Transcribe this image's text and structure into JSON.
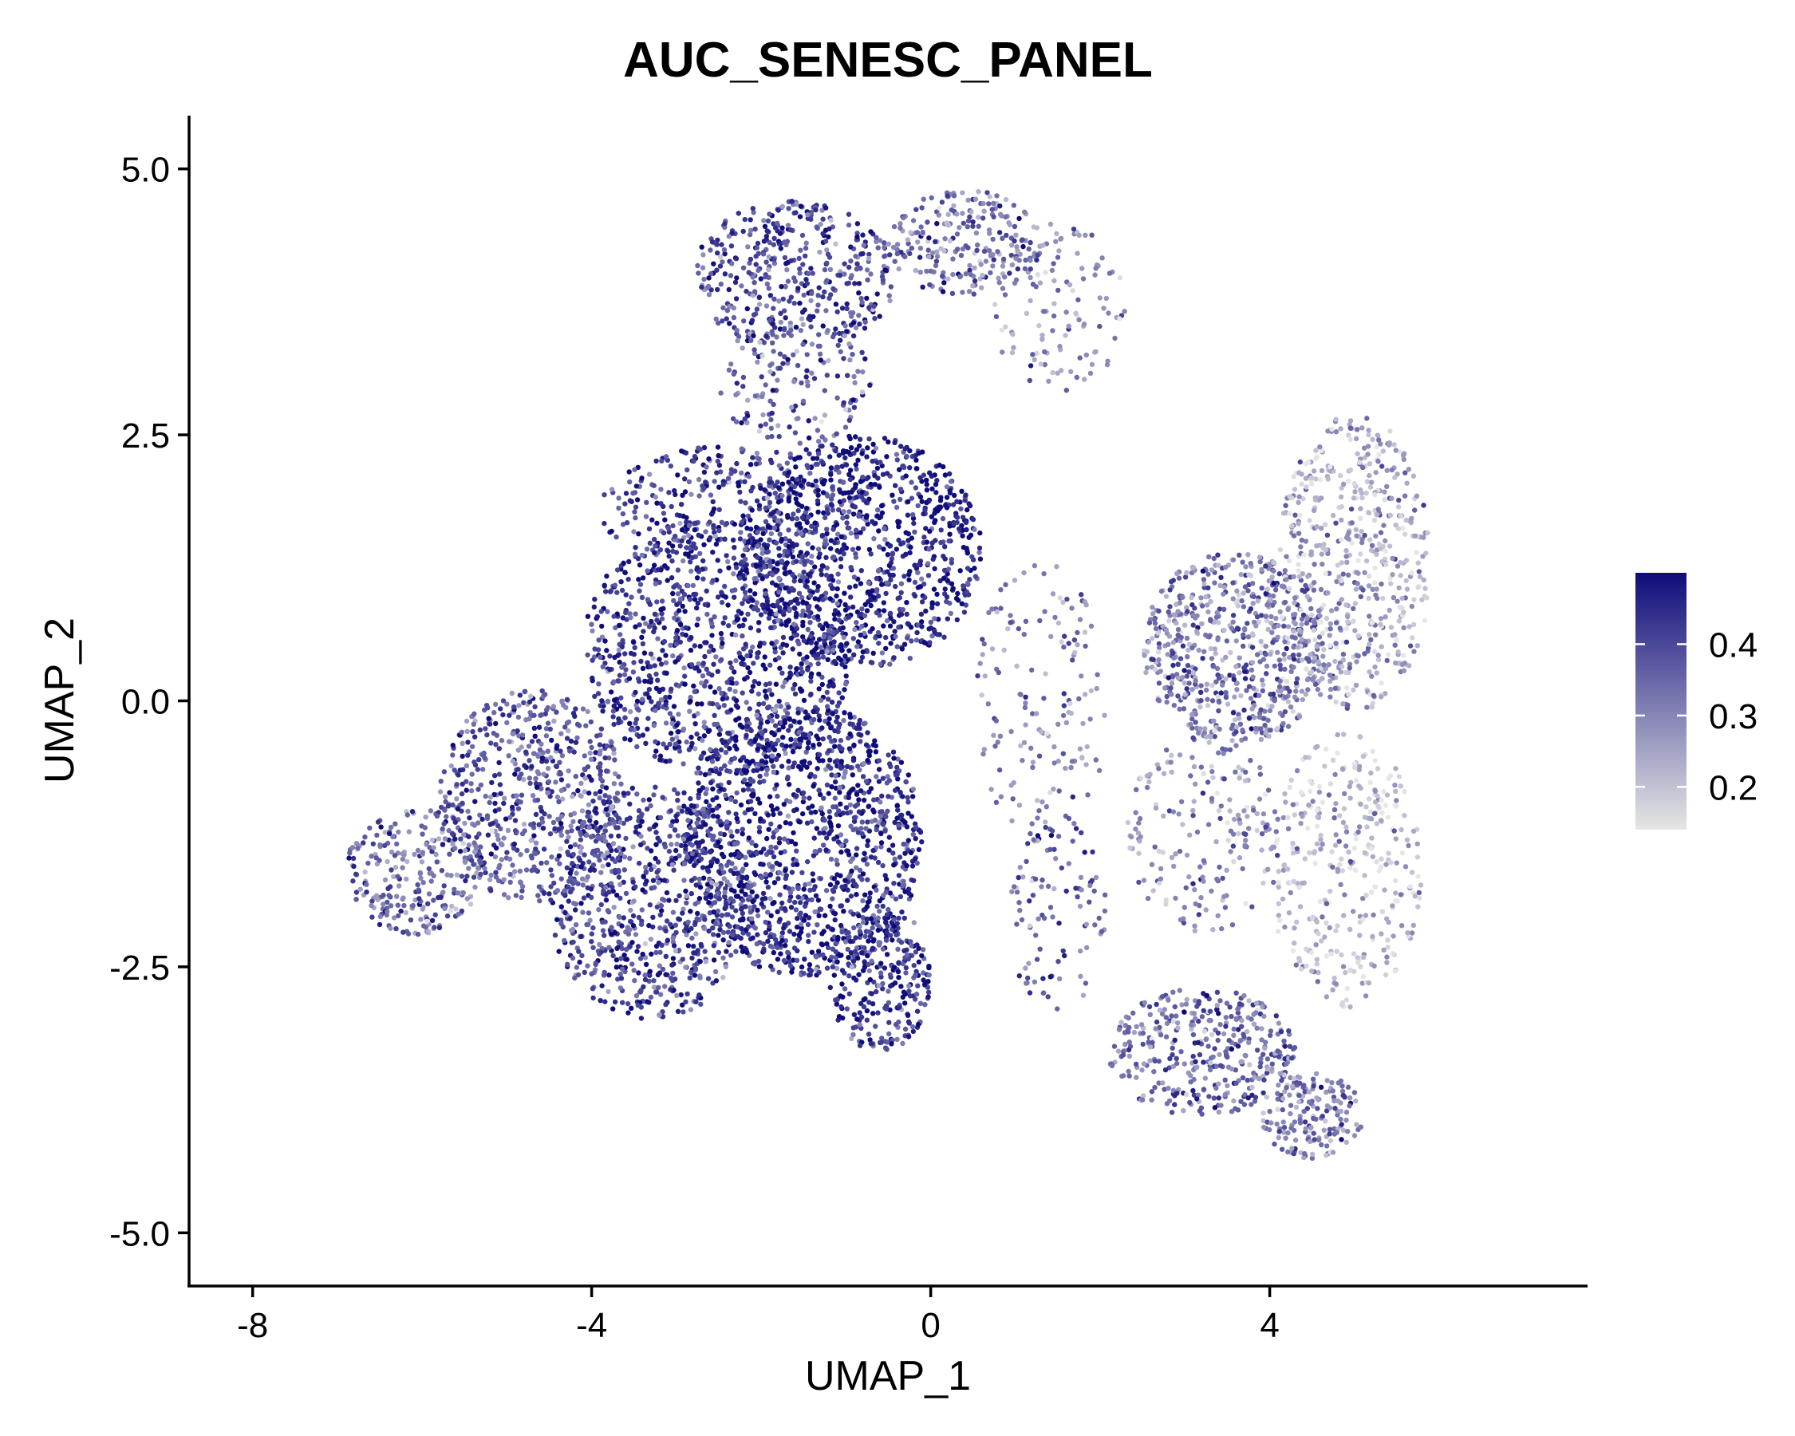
{
  "chart_data": {
    "type": "scatter",
    "title": "AUC_SENESC_PANEL",
    "xlabel": "UMAP_1",
    "ylabel": "UMAP_2",
    "xlim": [
      -8.75,
      7.75
    ],
    "ylim": [
      -5.5,
      5.5
    ],
    "x_ticks": [
      -8,
      -4,
      0,
      4
    ],
    "x_tick_labels": [
      "-8",
      "-4",
      "0",
      "4"
    ],
    "y_ticks": [
      5.0,
      2.5,
      0.0,
      -2.5,
      -5.0
    ],
    "y_tick_labels": [
      "5.0",
      "2.5",
      "0.0",
      "-2.5",
      "-5.0"
    ],
    "grid": false,
    "color_scale": {
      "low_color": "#e6e6e6",
      "high_color": "#0f0c7a",
      "min": 0.14,
      "max": 0.5,
      "ticks": [
        0.2,
        0.3,
        0.4
      ],
      "tick_labels": [
        "0.2",
        "0.3",
        "0.4"
      ],
      "position": "right"
    },
    "point_color_variable": "AUC score",
    "clusters": [
      {
        "cx": 1.3,
        "cy": 0.0,
        "rx": 0.8,
        "ry": 1.3,
        "n": 150,
        "level": 0.31
      },
      {
        "cx": 1.5,
        "cy": -2.0,
        "rx": 0.6,
        "ry": 0.9,
        "n": 100,
        "level": 0.35
      },
      {
        "cx": 1.5,
        "cy": 3.7,
        "rx": 0.8,
        "ry": 0.8,
        "n": 120,
        "level": 0.28
      },
      {
        "cx": -2.3,
        "cy": 1.8,
        "rx": 1.6,
        "ry": 0.6,
        "n": 350,
        "level": 0.42
      },
      {
        "cx": -1.6,
        "cy": 4.0,
        "rx": 1.2,
        "ry": 0.7,
        "n": 420,
        "level": 0.4
      },
      {
        "cx": 0.4,
        "cy": 4.3,
        "rx": 0.9,
        "ry": 0.5,
        "n": 230,
        "level": 0.33
      },
      {
        "cx": -1.6,
        "cy": 3.0,
        "rx": 0.9,
        "ry": 0.6,
        "n": 160,
        "level": 0.36
      },
      {
        "cx": -0.8,
        "cy": 1.4,
        "rx": 1.4,
        "ry": 1.1,
        "n": 900,
        "level": 0.46
      },
      {
        "cx": -2.5,
        "cy": 0.5,
        "rx": 1.6,
        "ry": 1.2,
        "n": 1000,
        "level": 0.44
      },
      {
        "cx": -1.5,
        "cy": -1.3,
        "rx": 1.4,
        "ry": 1.3,
        "n": 1200,
        "level": 0.45
      },
      {
        "cx": -3.3,
        "cy": -1.9,
        "rx": 1.2,
        "ry": 1.1,
        "n": 700,
        "level": 0.41
      },
      {
        "cx": -4.7,
        "cy": -0.9,
        "rx": 1.1,
        "ry": 1.0,
        "n": 600,
        "level": 0.37
      },
      {
        "cx": -6.1,
        "cy": -1.6,
        "rx": 0.8,
        "ry": 0.6,
        "n": 250,
        "level": 0.34
      },
      {
        "cx": -0.6,
        "cy": -2.6,
        "rx": 0.6,
        "ry": 0.7,
        "n": 280,
        "level": 0.43
      },
      {
        "cx": 3.6,
        "cy": 0.5,
        "rx": 1.1,
        "ry": 0.9,
        "n": 650,
        "level": 0.32
      },
      {
        "cx": 5.0,
        "cy": 1.3,
        "rx": 0.9,
        "ry": 1.4,
        "n": 550,
        "level": 0.24
      },
      {
        "cx": 4.9,
        "cy": -1.6,
        "rx": 0.9,
        "ry": 1.3,
        "n": 350,
        "level": 0.2
      },
      {
        "cx": 3.2,
        "cy": -3.3,
        "rx": 1.1,
        "ry": 0.6,
        "n": 380,
        "level": 0.34
      },
      {
        "cx": 4.5,
        "cy": -3.9,
        "rx": 0.6,
        "ry": 0.4,
        "n": 170,
        "level": 0.3
      },
      {
        "cx": 3.2,
        "cy": -1.2,
        "rx": 0.9,
        "ry": 1.0,
        "n": 200,
        "level": 0.28
      }
    ]
  }
}
